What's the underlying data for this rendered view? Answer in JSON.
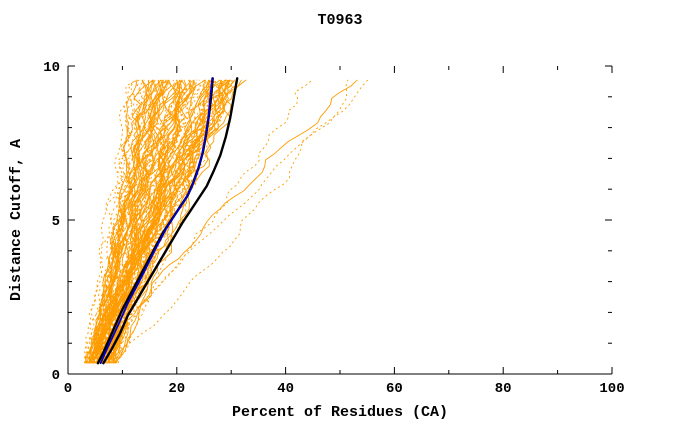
{
  "chart_data": {
    "type": "line",
    "title": "T0963",
    "xlabel": "Percent of Residues (CA)",
    "ylabel": "Distance Cutoff, A",
    "xlim": [
      0,
      100
    ],
    "ylim": [
      0,
      10
    ],
    "x_major_ticks": [
      0,
      20,
      40,
      60,
      80,
      100
    ],
    "x_minor_step": 10,
    "y_major_ticks": [
      0,
      5,
      10
    ],
    "y_minor_step": 1,
    "grid": false,
    "legend": "none",
    "axis_color": "#000000",
    "background_color": "#ffffff",
    "ensemble": {
      "description": "bundle of per-model distance-cutoff vs percent-residues curves",
      "count": 110,
      "seed": 1337,
      "color": "#ff9c00",
      "line_width": 0.9,
      "dotted_fraction": 0.55,
      "y_start": 0.35,
      "y_end": 9.62,
      "x_start_min": 3.0,
      "x_start_max": 9.0,
      "x_top_base_min": 12,
      "x_top_base_max": 33,
      "x_top_tail_prob": 0.13,
      "x_top_tail_extra": 30,
      "exponent_min": 0.8,
      "exponent_max": 1.35,
      "wiggle_amp_max": 1.2,
      "jitter": 0.5
    },
    "highlight_series": [
      {
        "name": "model-black-1",
        "color": "#000000",
        "width": 2.4,
        "points": [
          [
            5.5,
            0.35
          ],
          [
            6.5,
            0.7
          ],
          [
            7.5,
            1.1
          ],
          [
            8.5,
            1.5
          ],
          [
            10,
            2.1
          ],
          [
            11.5,
            2.6
          ],
          [
            13,
            3.1
          ],
          [
            14.5,
            3.6
          ],
          [
            16,
            4.1
          ],
          [
            17.5,
            4.6
          ],
          [
            19,
            5.0
          ],
          [
            20.5,
            5.4
          ],
          [
            22,
            5.8
          ],
          [
            23,
            6.2
          ],
          [
            24,
            6.7
          ],
          [
            24.8,
            7.2
          ],
          [
            25.4,
            7.8
          ],
          [
            25.9,
            8.4
          ],
          [
            26.3,
            9.0
          ],
          [
            26.6,
            9.6
          ]
        ]
      },
      {
        "name": "model-black-2",
        "color": "#000000",
        "width": 2.4,
        "points": [
          [
            6.5,
            0.35
          ],
          [
            8,
            0.8
          ],
          [
            9.5,
            1.3
          ],
          [
            11,
            1.9
          ],
          [
            13,
            2.5
          ],
          [
            15,
            3.1
          ],
          [
            17,
            3.7
          ],
          [
            19,
            4.3
          ],
          [
            21,
            4.9
          ],
          [
            22.5,
            5.3
          ],
          [
            24,
            5.7
          ],
          [
            25.5,
            6.1
          ],
          [
            26.8,
            6.6
          ],
          [
            28,
            7.1
          ],
          [
            29,
            7.7
          ],
          [
            29.8,
            8.3
          ],
          [
            30.4,
            8.9
          ],
          [
            30.9,
            9.4
          ],
          [
            31.1,
            9.6
          ]
        ]
      },
      {
        "name": "model-blue",
        "color": "#0000cc",
        "width": 1.8,
        "points": [
          [
            6,
            0.35
          ],
          [
            7,
            0.75
          ],
          [
            8.2,
            1.2
          ],
          [
            9.5,
            1.7
          ],
          [
            11,
            2.3
          ],
          [
            12.8,
            2.9
          ],
          [
            14.5,
            3.5
          ],
          [
            16.2,
            4.1
          ],
          [
            18,
            4.7
          ],
          [
            19.8,
            5.2
          ],
          [
            21.3,
            5.6
          ],
          [
            22.6,
            6.0
          ],
          [
            23.7,
            6.5
          ],
          [
            24.6,
            7.1
          ],
          [
            25.3,
            7.7
          ],
          [
            25.8,
            8.3
          ],
          [
            26.1,
            8.9
          ],
          [
            26.4,
            9.4
          ],
          [
            26.5,
            9.6
          ]
        ]
      }
    ]
  }
}
